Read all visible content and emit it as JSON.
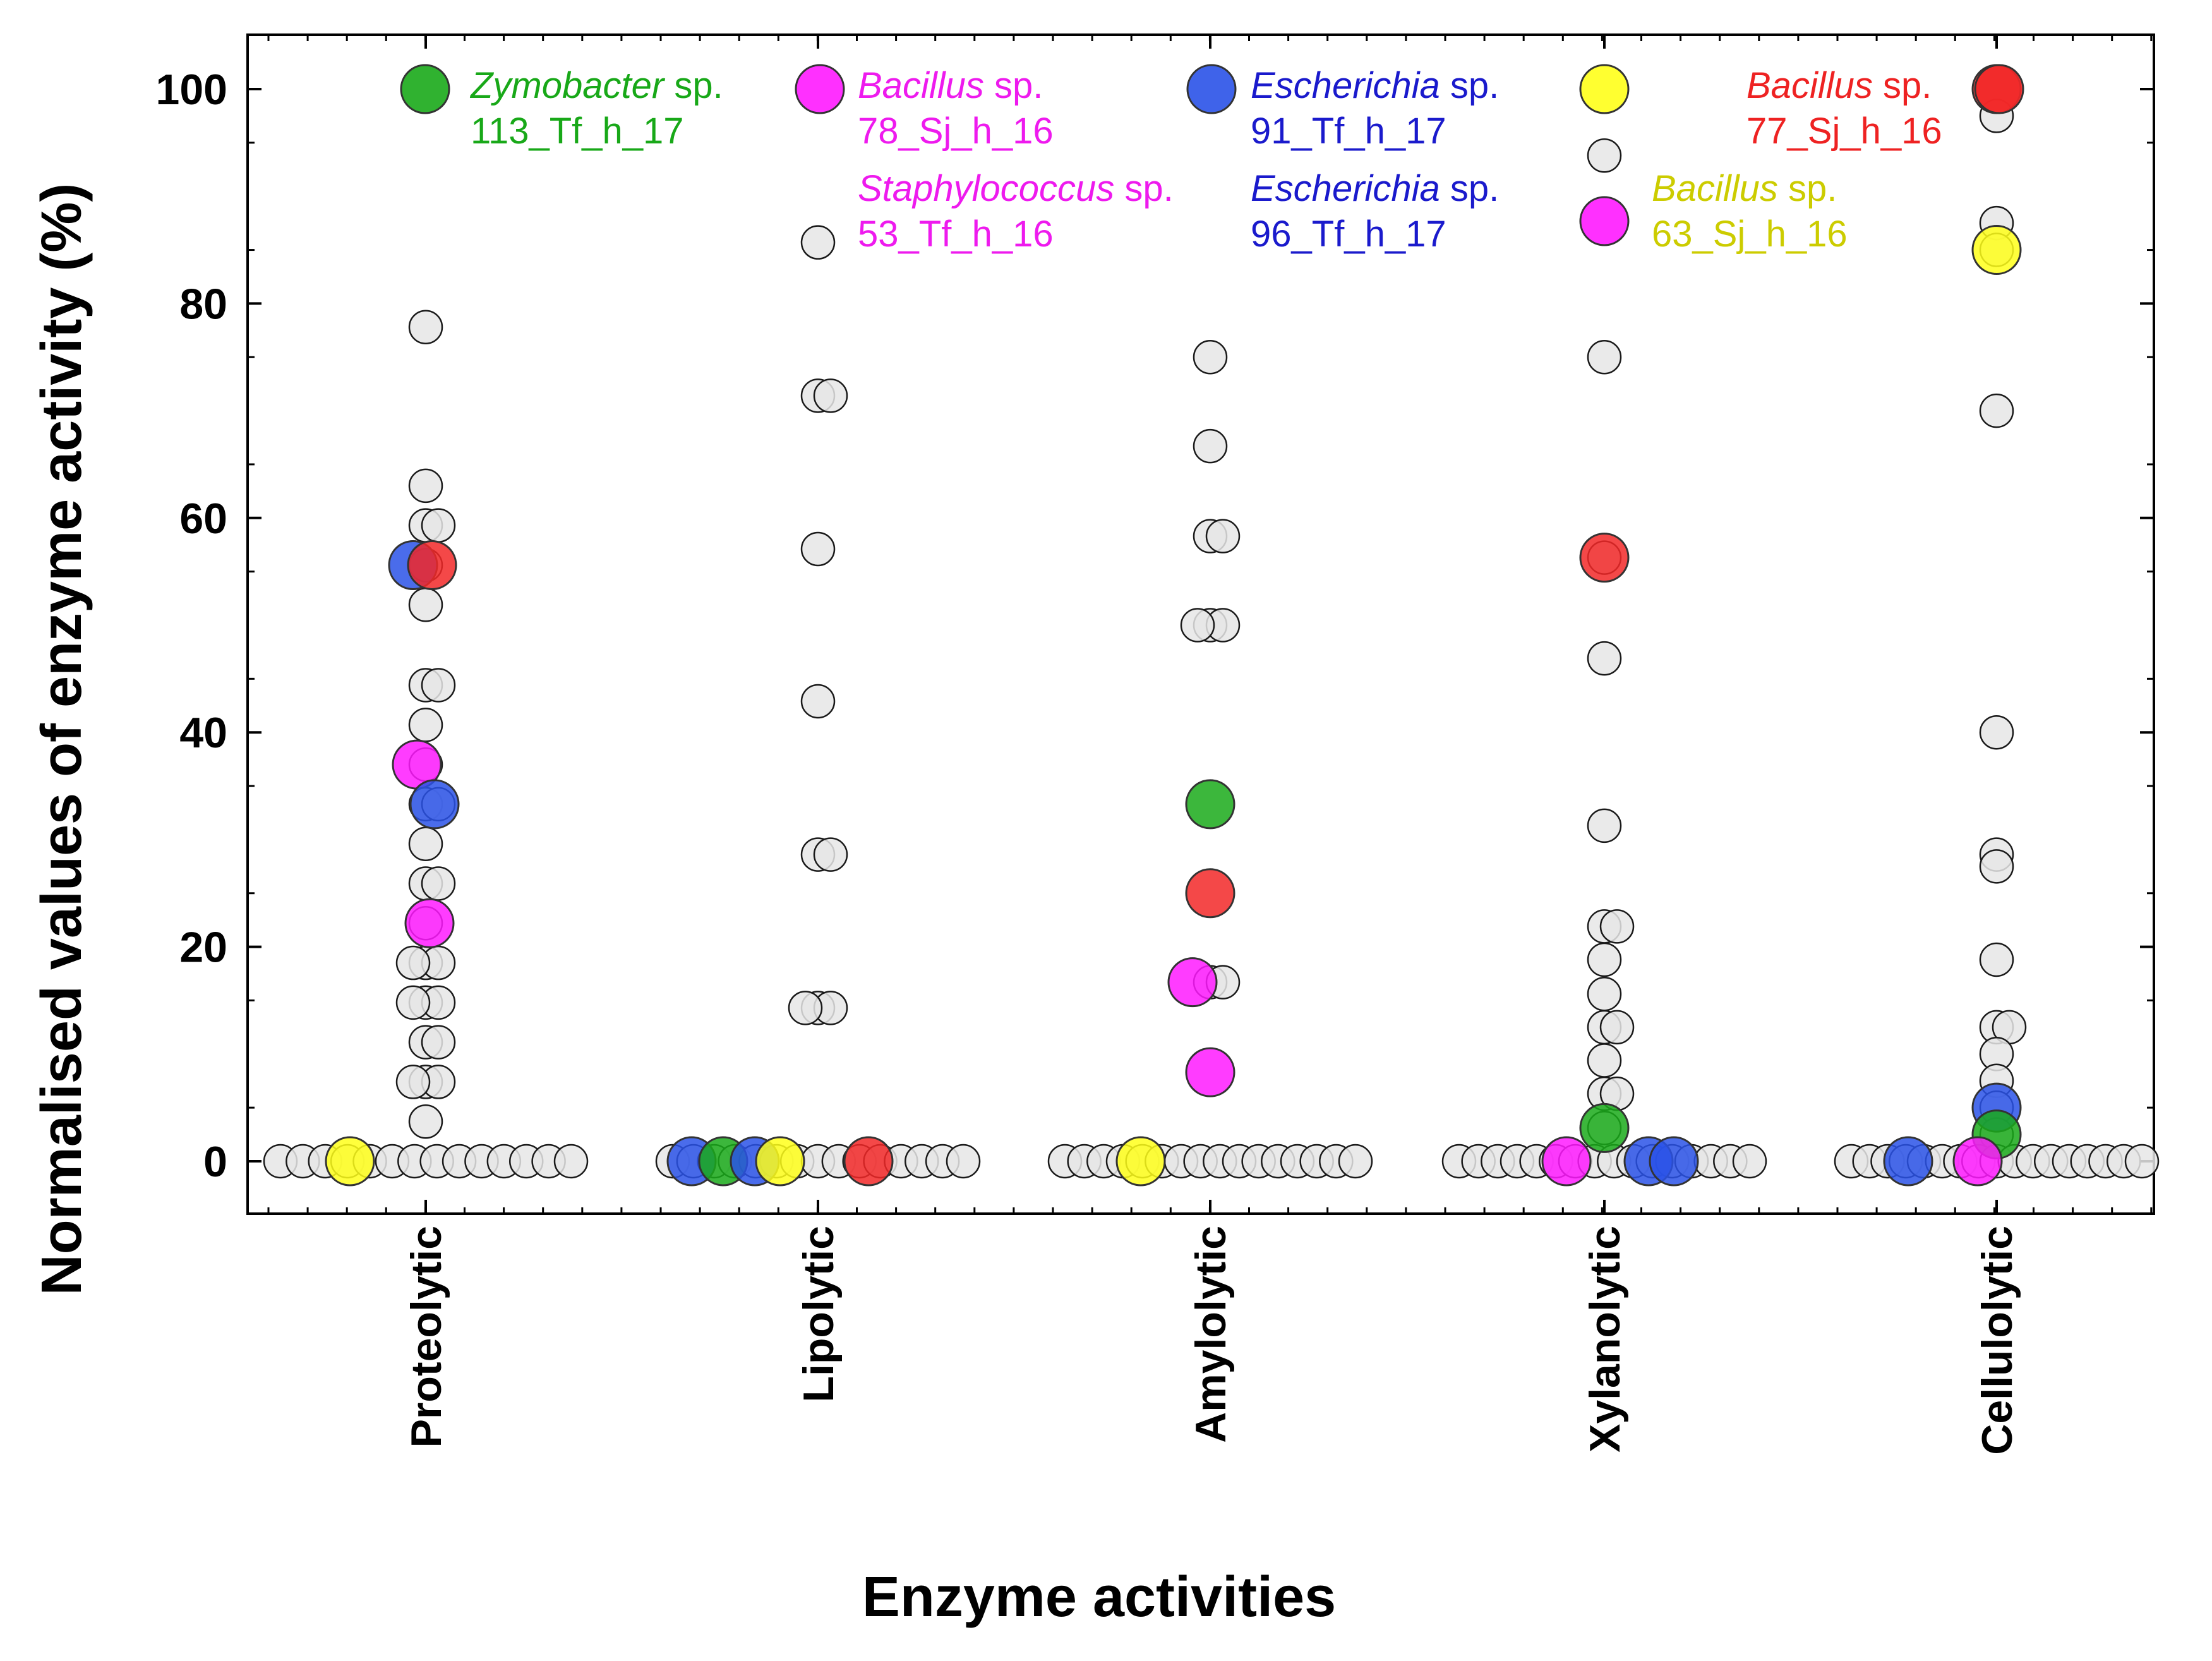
{
  "chart_data": {
    "type": "scatter",
    "subtype": "strip-plot",
    "title": "",
    "xlabel": "Enzyme activities",
    "ylabel": "Normalised values of enzyme activity (%)",
    "ylim": [
      -5,
      105
    ],
    "yticks": [
      0,
      20,
      40,
      60,
      80,
      100
    ],
    "ytick_labels": [
      "0",
      "20",
      "40",
      "60",
      "80",
      "100"
    ],
    "categories": [
      "Proteolytic",
      "Lipolytic",
      "Amylolytic",
      "Xylanolytic",
      "Cellulolytic"
    ],
    "legend_position": "top (inside plot)",
    "colors": {
      "green": "#1aaa1a",
      "magenta": "#ff1aff",
      "blue": "#2a52e8",
      "yellow": "#ffff1a",
      "red": "#f22828",
      "gray": "#e6e6e6",
      "text_green": "#18a818",
      "text_magenta": "#ee1aee",
      "text_blue": "#1a1acc",
      "text_yellow": "#cccc00",
      "text_red": "#ee2222"
    },
    "legend": [
      {
        "genus": "Zymobacter",
        "suffix": " sp.",
        "strain": "113_Tf_h_17",
        "marker": "green",
        "text": "text_green"
      },
      {
        "genus": "Bacillus",
        "suffix": " sp.",
        "strain": "78_Sj_h_16",
        "marker": "magenta",
        "text": "text_magenta"
      },
      {
        "genus": "Staphylococcus",
        "suffix": " sp.",
        "strain": "53_Tf_h_16",
        "marker": "",
        "text": "text_magenta"
      },
      {
        "genus": "Escherichia",
        "suffix": " sp.",
        "strain": "91_Tf_h_17",
        "marker": "blue",
        "text": "text_blue"
      },
      {
        "genus": "Escherichia",
        "suffix": " sp.",
        "strain": "96_Tf_h_17",
        "marker": "",
        "text": "text_blue"
      },
      {
        "genus": "Bacillus",
        "suffix": " sp.",
        "strain": "63_Sj_h_16",
        "marker": "yellow",
        "text": "text_yellow",
        "second_marker": "magenta"
      },
      {
        "genus": "Bacillus",
        "suffix": " sp.",
        "strain": "77_Sj_h_16",
        "marker": "red",
        "text": "text_red"
      }
    ],
    "gray_values": [
      [
        77.8,
        63,
        59.3,
        59.3,
        55.6,
        51.9,
        44.4,
        44.4,
        40.7,
        37,
        33.3,
        33.3,
        29.6,
        25.9,
        25.9,
        22.2,
        18.5,
        18.5,
        18.5,
        14.8,
        14.8,
        14.8,
        11.1,
        11.1,
        7.4,
        7.4,
        7.4,
        3.7
      ],
      [
        85.7,
        71.4,
        71.4,
        57.1,
        42.9,
        28.6,
        28.6,
        14.3,
        14.3,
        14.3
      ],
      [
        75,
        66.7,
        58.3,
        58.3,
        50,
        50,
        50,
        16.7,
        16.7
      ],
      [
        93.8,
        75,
        56.3,
        46.9,
        31.3,
        21.9,
        21.9,
        18.8,
        15.6,
        12.5,
        12.5,
        9.4,
        6.3,
        6.3,
        3.1
      ],
      [
        97.5,
        87.5,
        85,
        70,
        40,
        28.6,
        27.5,
        18.8,
        12.5,
        12.5,
        10,
        7.5,
        5,
        2.5
      ]
    ],
    "gray_zero_counts": [
      14,
      15,
      16,
      16,
      17
    ],
    "colored_points": [
      {
        "category": "Proteolytic",
        "value": 55.6,
        "color": "blue"
      },
      {
        "category": "Proteolytic",
        "value": 55.6,
        "color": "red"
      },
      {
        "category": "Proteolytic",
        "value": 37,
        "color": "magenta"
      },
      {
        "category": "Proteolytic",
        "value": 33.3,
        "color": "blue"
      },
      {
        "category": "Proteolytic",
        "value": 22.2,
        "color": "magenta"
      },
      {
        "category": "Proteolytic",
        "value": 0,
        "color": "yellow"
      },
      {
        "category": "Lipolytic",
        "value": 0,
        "color": "blue"
      },
      {
        "category": "Lipolytic",
        "value": 0,
        "color": "green"
      },
      {
        "category": "Lipolytic",
        "value": 0,
        "color": "blue"
      },
      {
        "category": "Lipolytic",
        "value": 0,
        "color": "yellow"
      },
      {
        "category": "Lipolytic",
        "value": 0,
        "color": "red"
      },
      {
        "category": "Amylolytic",
        "value": 33.3,
        "color": "green"
      },
      {
        "category": "Amylolytic",
        "value": 25,
        "color": "red"
      },
      {
        "category": "Amylolytic",
        "value": 16.7,
        "color": "magenta"
      },
      {
        "category": "Amylolytic",
        "value": 8.3,
        "color": "magenta"
      },
      {
        "category": "Amylolytic",
        "value": 0,
        "color": "yellow"
      },
      {
        "category": "Xylanolytic",
        "value": 56.3,
        "color": "red"
      },
      {
        "category": "Xylanolytic",
        "value": 3.1,
        "color": "green"
      },
      {
        "category": "Xylanolytic",
        "value": 0,
        "color": "magenta"
      },
      {
        "category": "Xylanolytic",
        "value": 0,
        "color": "blue"
      },
      {
        "category": "Xylanolytic",
        "value": 0,
        "color": "blue"
      },
      {
        "category": "Cellulolytic",
        "value": 100,
        "color": "red"
      },
      {
        "category": "Cellulolytic",
        "value": 85,
        "color": "yellow"
      },
      {
        "category": "Cellulolytic",
        "value": 5,
        "color": "blue"
      },
      {
        "category": "Cellulolytic",
        "value": 2.5,
        "color": "green"
      },
      {
        "category": "Cellulolytic",
        "value": 0,
        "color": "blue"
      },
      {
        "category": "Cellulolytic",
        "value": 0,
        "color": "magenta"
      }
    ]
  }
}
